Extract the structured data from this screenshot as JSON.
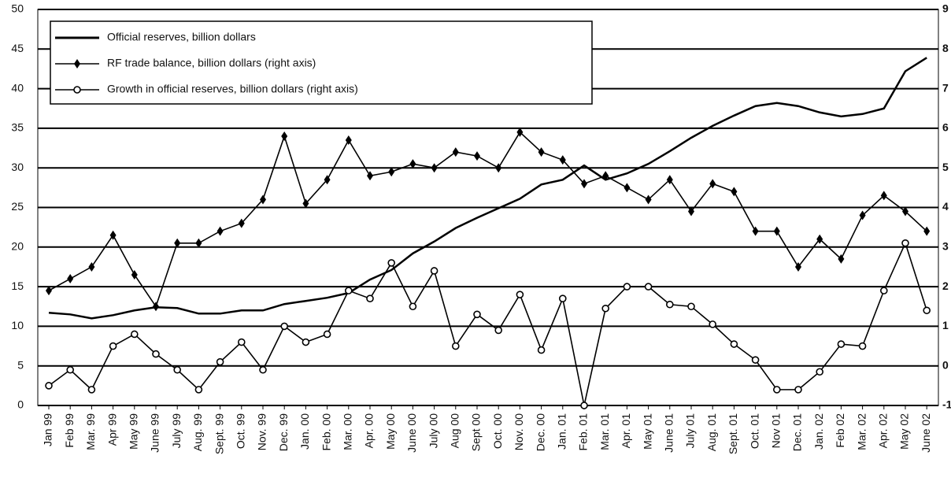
{
  "chart_data": {
    "type": "line",
    "categories": [
      "Jan 99",
      "Feb 99",
      "Mar. 99",
      "Apr 99",
      "May 99",
      "June 99",
      "July 99",
      "Aug. 99",
      "Sept. 99",
      "Oct. 99",
      "Nov. 99",
      "Dec. 99",
      "Jan. 00",
      "Feb. 00",
      "Mar. 00",
      "Apr. 00",
      "May 00",
      "June 00",
      "July 00",
      "Aug 00",
      "Sept 00",
      "Oct. 00",
      "Nov. 00",
      "Dec. 00",
      "Jan. 01",
      "Feb. 01",
      "Mar. 01",
      "Apr. 01",
      "May 01",
      "June 01",
      "July 01",
      "Aug. 01",
      "Sept. 01",
      "Oct. 01",
      "Nov 01",
      "Dec. 01",
      "Jan. 02",
      "Feb 02",
      "Mar. 02",
      "Apr. 02",
      "May 02",
      "June 02"
    ],
    "series": [
      {
        "name": "Official reserves, billion dollars",
        "color": "#000000",
        "marker": "none",
        "values": [
          11.7,
          11.5,
          11.0,
          11.4,
          12.0,
          12.4,
          12.3,
          11.6,
          11.6,
          12.0,
          12.0,
          12.8,
          13.2,
          13.6,
          14.2,
          15.9,
          17.1,
          19.2,
          20.7,
          22.4,
          23.7,
          24.9,
          26.1,
          27.9,
          28.5,
          30.3,
          28.5,
          29.3,
          30.5,
          32.1,
          33.8,
          35.3,
          36.6,
          37.8,
          38.2,
          37.8,
          37.0,
          36.5,
          36.8,
          37.5,
          42.2,
          43.9
        ]
      },
      {
        "name": "RF trade balance, billion dollars (right axis)",
        "color": "#000000",
        "marker": "diamond",
        "axis": "y2",
        "values": [
          1.9,
          2.2,
          2.5,
          3.3,
          2.3,
          1.5,
          3.1,
          3.1,
          3.4,
          3.6,
          4.2,
          5.8,
          4.1,
          4.7,
          5.7,
          4.8,
          4.9,
          5.1,
          5.0,
          5.4,
          5.3,
          5.0,
          5.9,
          5.4,
          5.2,
          4.6,
          4.8,
          4.5,
          4.2,
          4.7,
          3.9,
          4.6,
          4.4,
          3.4,
          3.4,
          2.5,
          3.2,
          2.7,
          3.8,
          4.3,
          3.9,
          3.4
        ]
      },
      {
        "name": "Growth in official reserves, billion dollars (right axis)",
        "color": "#000000",
        "marker": "circle",
        "axis": "y2",
        "values": [
          -0.5,
          -0.1,
          -0.6,
          0.5,
          0.8,
          0.3,
          -0.1,
          -0.6,
          0.1,
          0.6,
          -0.1,
          1.0,
          0.6,
          0.8,
          1.9,
          1.7,
          2.6,
          1.5,
          2.4,
          0.5,
          1.3,
          0.9,
          1.8,
          0.4,
          1.7,
          -1.0,
          1.45,
          2.0,
          2.0,
          1.55,
          1.5,
          1.05,
          0.55,
          0.15,
          -0.6,
          -0.6,
          -0.15,
          0.55,
          0.5,
          1.9,
          3.1,
          1.4
        ]
      }
    ],
    "ylim": [
      0,
      50
    ],
    "yticks": [
      0,
      5,
      10,
      15,
      20,
      25,
      30,
      35,
      40,
      45,
      50
    ],
    "y2lim": [
      -1,
      9
    ],
    "y2ticks": [
      -1,
      0,
      1,
      2,
      3,
      4,
      5,
      6,
      7,
      8,
      9
    ],
    "grid": true,
    "legend": "upper left"
  }
}
